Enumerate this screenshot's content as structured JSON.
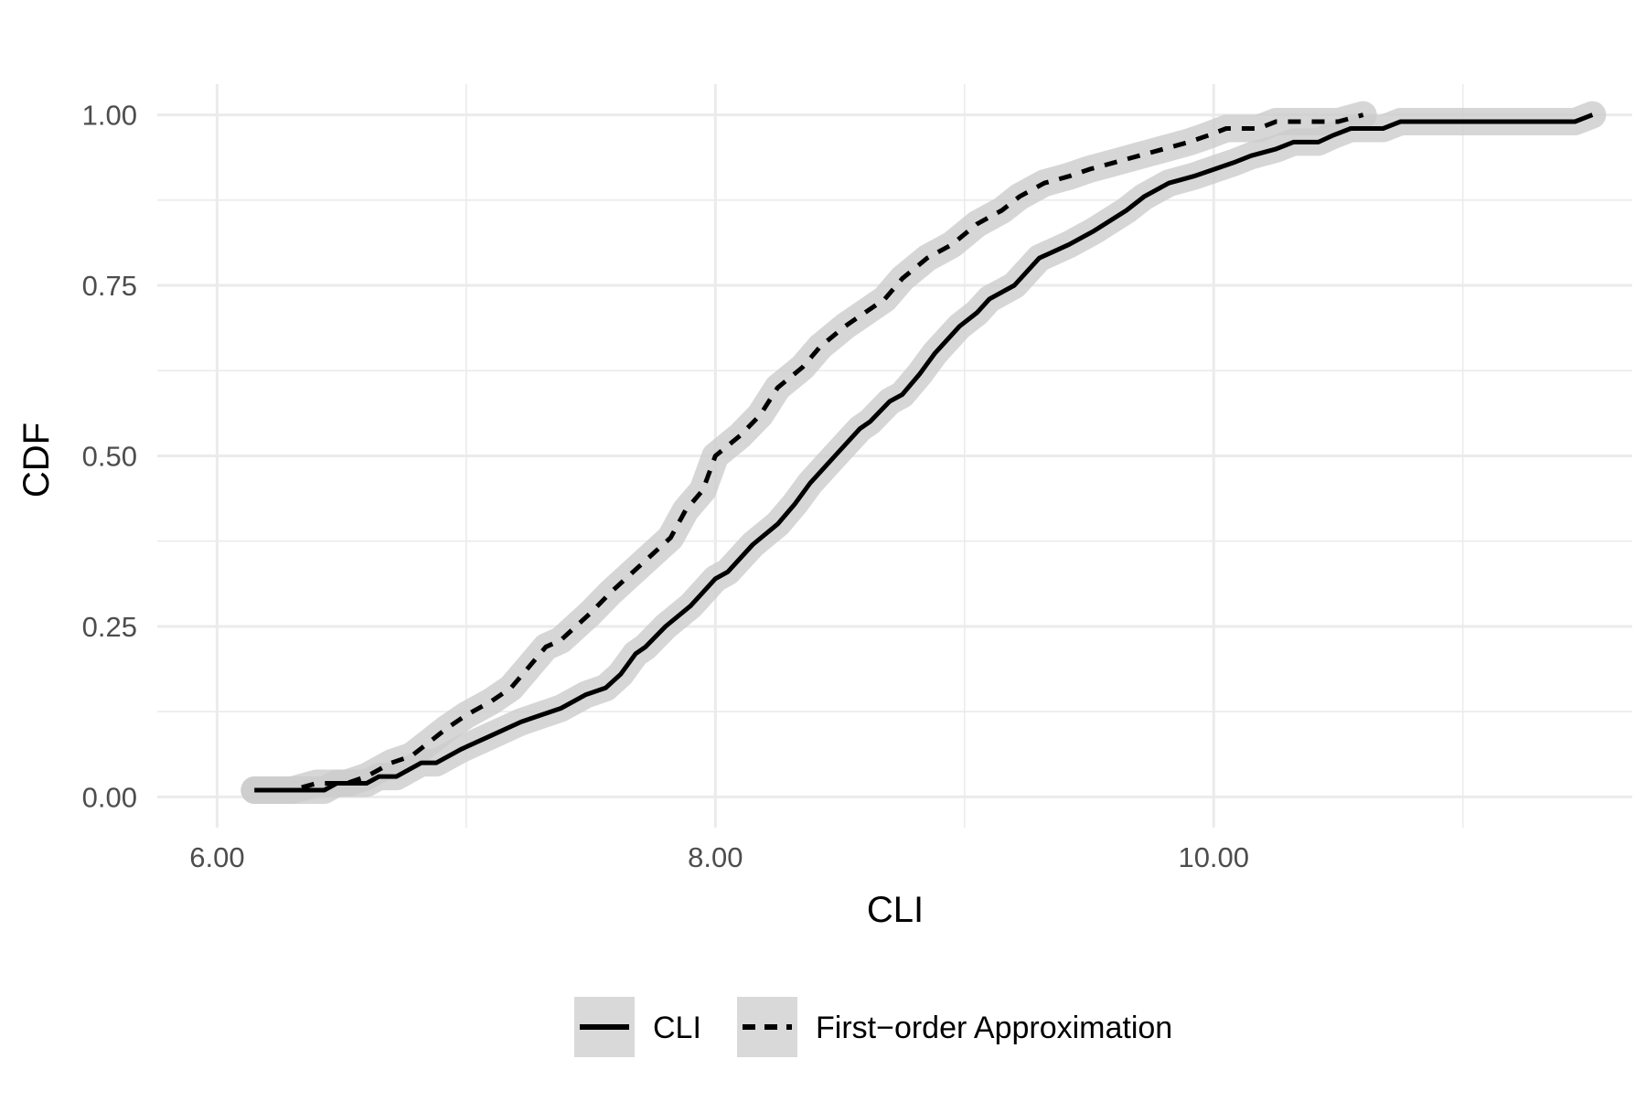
{
  "chart_data": {
    "type": "line",
    "title": "",
    "xlabel": "CLI",
    "ylabel": "CDF",
    "xlim": [
      5.76,
      11.68
    ],
    "ylim": [
      -0.045,
      1.045
    ],
    "x_major_ticks": [
      6.0,
      8.0,
      10.0
    ],
    "x_minor_ticks": [
      7.0,
      9.0,
      11.0
    ],
    "x_tick_labels": [
      "6.00",
      "8.00",
      "10.00"
    ],
    "y_major_ticks": [
      0.0,
      0.25,
      0.5,
      0.75,
      1.0
    ],
    "y_minor_ticks": [
      0.125,
      0.375,
      0.625,
      0.875
    ],
    "y_tick_labels": [
      "0.00",
      "0.25",
      "0.50",
      "0.75",
      "1.00"
    ],
    "grid": true,
    "legend_position": "bottom",
    "band_color": "#cccccc",
    "line_color": "#000000",
    "series": [
      {
        "name": "CLI",
        "style": "solid",
        "points": [
          [
            6.15,
            0.01
          ],
          [
            6.43,
            0.01
          ],
          [
            6.48,
            0.02
          ],
          [
            6.6,
            0.02
          ],
          [
            6.65,
            0.03
          ],
          [
            6.72,
            0.03
          ],
          [
            6.82,
            0.05
          ],
          [
            6.88,
            0.05
          ],
          [
            6.98,
            0.07
          ],
          [
            7.1,
            0.09
          ],
          [
            7.22,
            0.11
          ],
          [
            7.3,
            0.12
          ],
          [
            7.38,
            0.13
          ],
          [
            7.48,
            0.15
          ],
          [
            7.56,
            0.16
          ],
          [
            7.62,
            0.18
          ],
          [
            7.68,
            0.21
          ],
          [
            7.72,
            0.22
          ],
          [
            7.8,
            0.25
          ],
          [
            7.9,
            0.28
          ],
          [
            8.0,
            0.32
          ],
          [
            8.05,
            0.33
          ],
          [
            8.15,
            0.37
          ],
          [
            8.25,
            0.4
          ],
          [
            8.32,
            0.43
          ],
          [
            8.38,
            0.46
          ],
          [
            8.48,
            0.5
          ],
          [
            8.58,
            0.54
          ],
          [
            8.62,
            0.55
          ],
          [
            8.7,
            0.58
          ],
          [
            8.75,
            0.59
          ],
          [
            8.82,
            0.62
          ],
          [
            8.88,
            0.65
          ],
          [
            8.93,
            0.67
          ],
          [
            8.98,
            0.69
          ],
          [
            9.05,
            0.71
          ],
          [
            9.1,
            0.73
          ],
          [
            9.2,
            0.75
          ],
          [
            9.3,
            0.79
          ],
          [
            9.42,
            0.81
          ],
          [
            9.52,
            0.83
          ],
          [
            9.65,
            0.86
          ],
          [
            9.72,
            0.88
          ],
          [
            9.82,
            0.9
          ],
          [
            9.92,
            0.91
          ],
          [
            10.0,
            0.92
          ],
          [
            10.08,
            0.93
          ],
          [
            10.15,
            0.94
          ],
          [
            10.25,
            0.95
          ],
          [
            10.32,
            0.96
          ],
          [
            10.42,
            0.96
          ],
          [
            10.48,
            0.97
          ],
          [
            10.55,
            0.98
          ],
          [
            10.68,
            0.98
          ],
          [
            10.75,
            0.99
          ],
          [
            10.9,
            0.99
          ],
          [
            11.05,
            0.99
          ],
          [
            11.45,
            0.99
          ],
          [
            11.52,
            1.0
          ]
        ]
      },
      {
        "name": "First−order Approximation",
        "style": "dashed",
        "points": [
          [
            6.15,
            0.01
          ],
          [
            6.3,
            0.01
          ],
          [
            6.4,
            0.02
          ],
          [
            6.52,
            0.02
          ],
          [
            6.6,
            0.03
          ],
          [
            6.65,
            0.04
          ],
          [
            6.7,
            0.05
          ],
          [
            6.78,
            0.06
          ],
          [
            6.85,
            0.08
          ],
          [
            6.92,
            0.1
          ],
          [
            7.0,
            0.12
          ],
          [
            7.1,
            0.14
          ],
          [
            7.18,
            0.16
          ],
          [
            7.25,
            0.19
          ],
          [
            7.32,
            0.22
          ],
          [
            7.38,
            0.23
          ],
          [
            7.44,
            0.25
          ],
          [
            7.5,
            0.27
          ],
          [
            7.58,
            0.3
          ],
          [
            7.64,
            0.32
          ],
          [
            7.7,
            0.34
          ],
          [
            7.76,
            0.36
          ],
          [
            7.82,
            0.38
          ],
          [
            7.88,
            0.42
          ],
          [
            7.95,
            0.45
          ],
          [
            8.0,
            0.5
          ],
          [
            8.1,
            0.53
          ],
          [
            8.18,
            0.56
          ],
          [
            8.25,
            0.6
          ],
          [
            8.35,
            0.63
          ],
          [
            8.42,
            0.66
          ],
          [
            8.52,
            0.69
          ],
          [
            8.6,
            0.71
          ],
          [
            8.68,
            0.73
          ],
          [
            8.75,
            0.76
          ],
          [
            8.85,
            0.79
          ],
          [
            8.95,
            0.81
          ],
          [
            9.05,
            0.84
          ],
          [
            9.15,
            0.86
          ],
          [
            9.22,
            0.88
          ],
          [
            9.32,
            0.9
          ],
          [
            9.42,
            0.91
          ],
          [
            9.5,
            0.92
          ],
          [
            9.6,
            0.93
          ],
          [
            9.7,
            0.94
          ],
          [
            9.8,
            0.95
          ],
          [
            9.9,
            0.96
          ],
          [
            9.98,
            0.97
          ],
          [
            10.05,
            0.98
          ],
          [
            10.18,
            0.98
          ],
          [
            10.25,
            0.99
          ],
          [
            10.5,
            0.99
          ],
          [
            10.6,
            1.0
          ]
        ]
      }
    ]
  }
}
